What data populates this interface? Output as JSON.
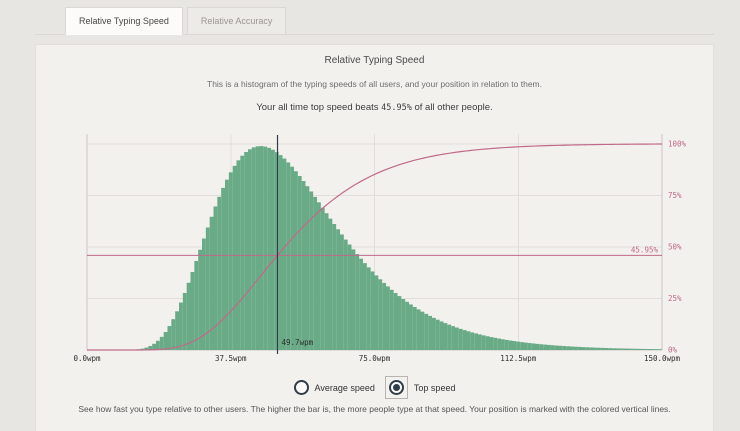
{
  "tabs": [
    {
      "label": "Relative Typing Speed",
      "active": true
    },
    {
      "label": "Relative Accuracy",
      "active": false
    }
  ],
  "panel": {
    "title": "Relative Typing Speed",
    "subtitle": "This is a histogram of the typing speeds of all users, and your position in relation to them.",
    "beats_prefix": "Your all time top speed beats ",
    "beats_value": "45.95%",
    "beats_suffix": " of all other people.",
    "footnote": "See how fast you type relative to other users. The higher the bar is, the more people type at that speed. Your position is marked with the colored vertical lines."
  },
  "controls": {
    "options": [
      {
        "label": "Average speed",
        "selected": false
      },
      {
        "label": "Top speed",
        "selected": true
      }
    ]
  },
  "colors": {
    "page_bg": "#e8e6e3",
    "card_bg": "#f3f1ee",
    "bar_green": "#6aab87",
    "cdf_pink": "#c0698a",
    "marker_dark": "#2e3d49"
  },
  "chart_data": {
    "type": "histogram_with_cdf",
    "title": "Relative Typing Speed",
    "x_axis": {
      "unit": "wpm",
      "min": 0,
      "max": 150,
      "tick_values": [
        0,
        37.5,
        75,
        112.5,
        150
      ],
      "tick_labels": [
        "0.0wpm",
        "37.5wpm",
        "75.0wpm",
        "112.5wpm",
        "150.0wpm"
      ]
    },
    "y_axis_right": {
      "unit": "%",
      "min": 0,
      "max": 100,
      "tick_values": [
        100,
        75,
        50,
        25,
        0
      ],
      "tick_labels": [
        "100%",
        "75%",
        "50%",
        "25%",
        "0%"
      ]
    },
    "grid": true,
    "histogram": {
      "bin_wpm": 1,
      "distribution": "lognormal",
      "log_mu": 3.943,
      "log_sigma": 0.36,
      "mode_wpm": 45.2,
      "peak_height_pct": 99,
      "bar_color": "#6aab87",
      "estimated_heights_pct": [
        [
          10,
          0.5
        ],
        [
          15,
          3
        ],
        [
          20,
          9
        ],
        [
          25,
          20
        ],
        [
          30,
          40
        ],
        [
          35,
          65
        ],
        [
          40,
          86
        ],
        [
          45,
          98
        ],
        [
          46,
          99
        ],
        [
          50,
          96
        ],
        [
          55,
          85
        ],
        [
          60,
          70
        ],
        [
          65,
          55
        ],
        [
          70,
          43
        ],
        [
          75,
          34
        ],
        [
          80,
          26
        ],
        [
          85,
          20
        ],
        [
          90,
          15
        ],
        [
          95,
          11
        ],
        [
          100,
          8
        ],
        [
          105,
          6
        ],
        [
          110,
          4.5
        ],
        [
          115,
          3.3
        ],
        [
          120,
          2.4
        ],
        [
          125,
          1.7
        ],
        [
          130,
          1.2
        ],
        [
          135,
          0.9
        ],
        [
          140,
          0.6
        ],
        [
          145,
          0.4
        ],
        [
          150,
          0.3
        ]
      ]
    },
    "cdf": {
      "color": "#c0698a",
      "starts_at_pct": 0,
      "ends_at_pct": 100
    },
    "user_marker": {
      "wpm": 49.7,
      "label": "49.7wpm",
      "percentile": 45.95,
      "percentile_label": "45.95%",
      "line_color": "#2e3d49"
    }
  }
}
